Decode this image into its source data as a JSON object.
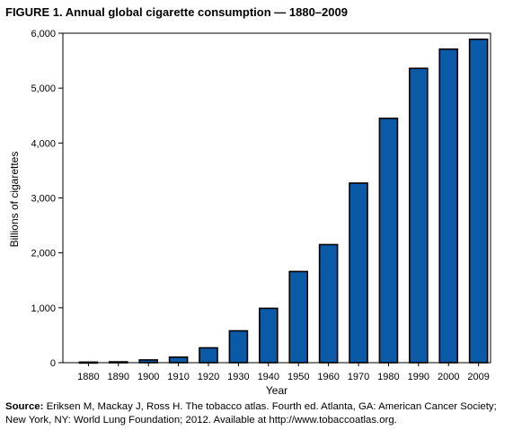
{
  "title": "FIGURE 1. Annual global cigarette consumption — 1880–2009",
  "source": {
    "label": "Source:",
    "text": "Eriksen M, Mackay J, Ross H. The tobacco atlas. Fourth ed. Atlanta, GA: American Cancer Society; New York, NY: World Lung Foundation; 2012. Available at http://www.tobaccoatlas.org."
  },
  "chart_data": {
    "type": "bar",
    "title": "FIGURE 1. Annual global cigarette consumption — 1880–2009",
    "xlabel": "Year",
    "ylabel": "Billions of cigarettes",
    "categories": [
      "1880",
      "1890",
      "1900",
      "1910",
      "1920",
      "1930",
      "1940",
      "1950",
      "1960",
      "1970",
      "1980",
      "1990",
      "2000",
      "2009"
    ],
    "values": [
      10,
      15,
      50,
      100,
      270,
      580,
      990,
      1660,
      2150,
      3270,
      4450,
      5360,
      5710,
      5890
    ],
    "ylim": [
      0,
      6000
    ],
    "yticks": [
      0,
      1000,
      2000,
      3000,
      4000,
      5000,
      6000
    ],
    "ytick_labels": [
      "0",
      "1,000",
      "2,000",
      "3,000",
      "4,000",
      "5,000",
      "6,000"
    ],
    "grid": false,
    "bar_color": "#0a5aa8"
  }
}
